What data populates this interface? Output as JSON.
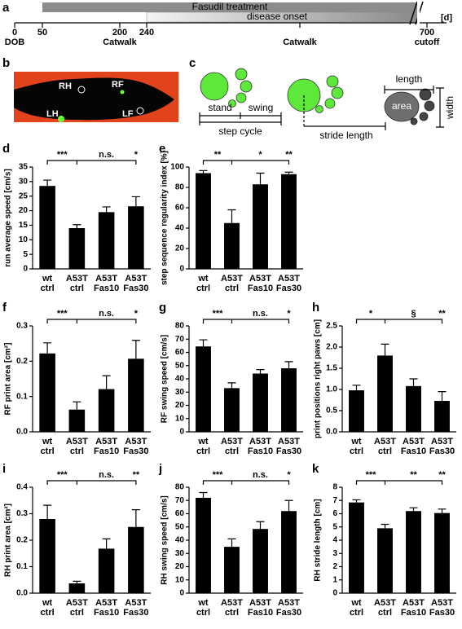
{
  "timeline": {
    "panel": "a",
    "treatment": "Fasudil treatment",
    "onset": "disease onset",
    "days": [
      "0",
      "50",
      "200",
      "240",
      "700"
    ],
    "unit": "[d]",
    "events": [
      "DOB",
      "Catwalk",
      "Catwalk",
      "cutoff"
    ]
  },
  "photo": {
    "panel": "b",
    "paws": [
      "RH",
      "RF",
      "LH",
      "LF"
    ]
  },
  "diagram": {
    "panel": "c",
    "phases": [
      "stand",
      "swing"
    ],
    "cycle": "step cycle",
    "stride": "stride length",
    "length": "length",
    "width": "width",
    "area": "area"
  },
  "chart_data": [
    {
      "type": "bar",
      "panel": "d",
      "ylabel": "run average speed [cm/s]",
      "categories": [
        [
          "wt",
          "ctrl"
        ],
        [
          "A53T",
          "ctrl"
        ],
        [
          "A53T",
          "Fas10"
        ],
        [
          "A53T",
          "Fas30"
        ]
      ],
      "values": [
        28.5,
        14,
        19.5,
        21.5
      ],
      "errors": [
        2,
        1.2,
        1.8,
        3.3
      ],
      "significance": [
        "***",
        null,
        "n.s.",
        "*"
      ],
      "color": "#000000",
      "ylim": [
        0,
        35
      ],
      "yticks": [
        0,
        5,
        10,
        15,
        20,
        25,
        30,
        35
      ]
    },
    {
      "type": "bar",
      "panel": "e",
      "ylabel": "step sequence regularity index [%]",
      "categories": [
        [
          "wt",
          "ctrl"
        ],
        [
          "A53T",
          "ctrl"
        ],
        [
          "A53T",
          "Fas10"
        ],
        [
          "A53T",
          "Fas30"
        ]
      ],
      "values": [
        94,
        45,
        83,
        93
      ],
      "errors": [
        2.5,
        13,
        11,
        2
      ],
      "significance": [
        "**",
        null,
        "*",
        "**"
      ],
      "color": "#000000",
      "ylim": [
        0,
        100
      ],
      "yticks": [
        0,
        20,
        40,
        60,
        80,
        100
      ]
    },
    {
      "type": "bar",
      "panel": "f",
      "ylabel": "RF print area [cm²]",
      "categories": [
        [
          "wt",
          "ctrl"
        ],
        [
          "A53T",
          "ctrl"
        ],
        [
          "A53T",
          "Fas10"
        ],
        [
          "A53T",
          "Fas30"
        ]
      ],
      "values": [
        0.222,
        0.063,
        0.121,
        0.207
      ],
      "errors": [
        0.03,
        0.022,
        0.038,
        0.052
      ],
      "significance": [
        "***",
        null,
        "n.s.",
        "*"
      ],
      "color": "#000000",
      "ylim": [
        0,
        0.3
      ],
      "yticks": [
        {
          "value": 0,
          "label": "0.0"
        },
        0.1,
        0.2,
        0.3
      ]
    },
    {
      "type": "bar",
      "panel": "g",
      "ylabel": "RF swing speed [cm/s]",
      "categories": [
        [
          "wt",
          "ctrl"
        ],
        [
          "A53T",
          "ctrl"
        ],
        [
          "A53T",
          "Fas10"
        ],
        [
          "A53T",
          "Fas30"
        ]
      ],
      "values": [
        64.5,
        33,
        44,
        48
      ],
      "errors": [
        5,
        4,
        3,
        5
      ],
      "significance": [
        "***",
        null,
        "n.s.",
        "*"
      ],
      "color": "#000000",
      "ylim": [
        0,
        80
      ],
      "yticks": [
        0,
        10,
        20,
        30,
        40,
        50,
        60,
        70,
        80
      ]
    },
    {
      "type": "bar",
      "panel": "h",
      "ylabel": "print positions right paws [cm]",
      "categories": [
        [
          "wt",
          "ctrl"
        ],
        [
          "A53T",
          "ctrl"
        ],
        [
          "A53T",
          "Fas10"
        ],
        [
          "A53T",
          "Fas30"
        ]
      ],
      "values": [
        0.98,
        1.8,
        1.08,
        0.73
      ],
      "errors": [
        0.12,
        0.27,
        0.17,
        0.22
      ],
      "significance": [
        "*",
        null,
        "§",
        "**"
      ],
      "color": "#000000",
      "ylim": [
        0,
        2.5
      ],
      "yticks": [
        {
          "value": 0,
          "label": "0.0"
        },
        0.5,
        {
          "value": 1,
          "label": "1.0"
        },
        1.5,
        {
          "value": 2,
          "label": "2.0"
        },
        2.5
      ]
    },
    {
      "type": "bar",
      "panel": "i",
      "ylabel": "RH print area [cm²]",
      "categories": [
        [
          "wt",
          "ctrl"
        ],
        [
          "A53T",
          "ctrl"
        ],
        [
          "A53T",
          "Fas10"
        ],
        [
          "A53T",
          "Fas30"
        ]
      ],
      "values": [
        0.28,
        0.037,
        0.168,
        0.25
      ],
      "errors": [
        0.052,
        0.008,
        0.037,
        0.065
      ],
      "significance": [
        "***",
        null,
        "n.s.",
        "**"
      ],
      "color": "#000000",
      "ylim": [
        0,
        0.4
      ],
      "yticks": [
        {
          "value": 0,
          "label": "0.0"
        },
        0.1,
        0.2,
        0.3,
        0.4
      ]
    },
    {
      "type": "bar",
      "panel": "j",
      "ylabel": "RH swing speed [cm/s]",
      "categories": [
        [
          "wt",
          "ctrl"
        ],
        [
          "A53T",
          "ctrl"
        ],
        [
          "A53T",
          "Fas10"
        ],
        [
          "A53T",
          "Fas30"
        ]
      ],
      "values": [
        72,
        35,
        48.5,
        62
      ],
      "errors": [
        4,
        6,
        5.5,
        8
      ],
      "significance": [
        "***",
        null,
        "n.s.",
        "*"
      ],
      "color": "#000000",
      "ylim": [
        0,
        80
      ],
      "yticks": [
        0,
        10,
        20,
        30,
        40,
        50,
        60,
        70,
        80
      ]
    },
    {
      "type": "bar",
      "panel": "k",
      "ylabel": "RH stride length [cm]",
      "categories": [
        [
          "wt",
          "ctrl"
        ],
        [
          "A53T",
          "ctrl"
        ],
        [
          "A53T",
          "Fas10"
        ],
        [
          "A53T",
          "Fas30"
        ]
      ],
      "values": [
        6.85,
        4.9,
        6.2,
        6.05
      ],
      "errors": [
        0.2,
        0.3,
        0.25,
        0.3
      ],
      "significance": [
        "***",
        null,
        "**",
        "**"
      ],
      "color": "#000000",
      "ylim": [
        0,
        8
      ],
      "yticks": [
        0,
        1,
        2,
        3,
        4,
        5,
        6,
        7,
        8
      ]
    }
  ]
}
